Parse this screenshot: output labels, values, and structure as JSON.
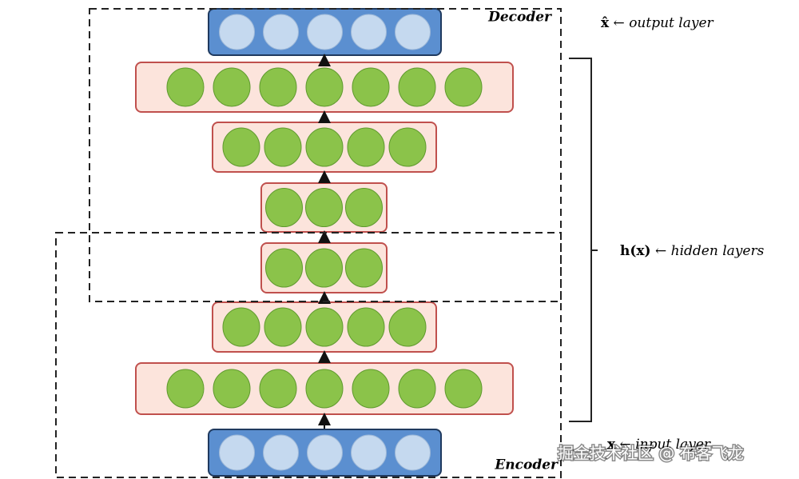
{
  "decoder_label": "Decoder",
  "encoder_label": "Encoder",
  "output_label": {
    "symbol": "x̂",
    "text": "← output layer"
  },
  "hidden_label": {
    "symbol": "h(x)",
    "text": "← hidden layers"
  },
  "input_label": {
    "symbol": "x",
    "text": "← input layer"
  },
  "watermark": "掘金技术社区 @ 布客飞龙"
}
